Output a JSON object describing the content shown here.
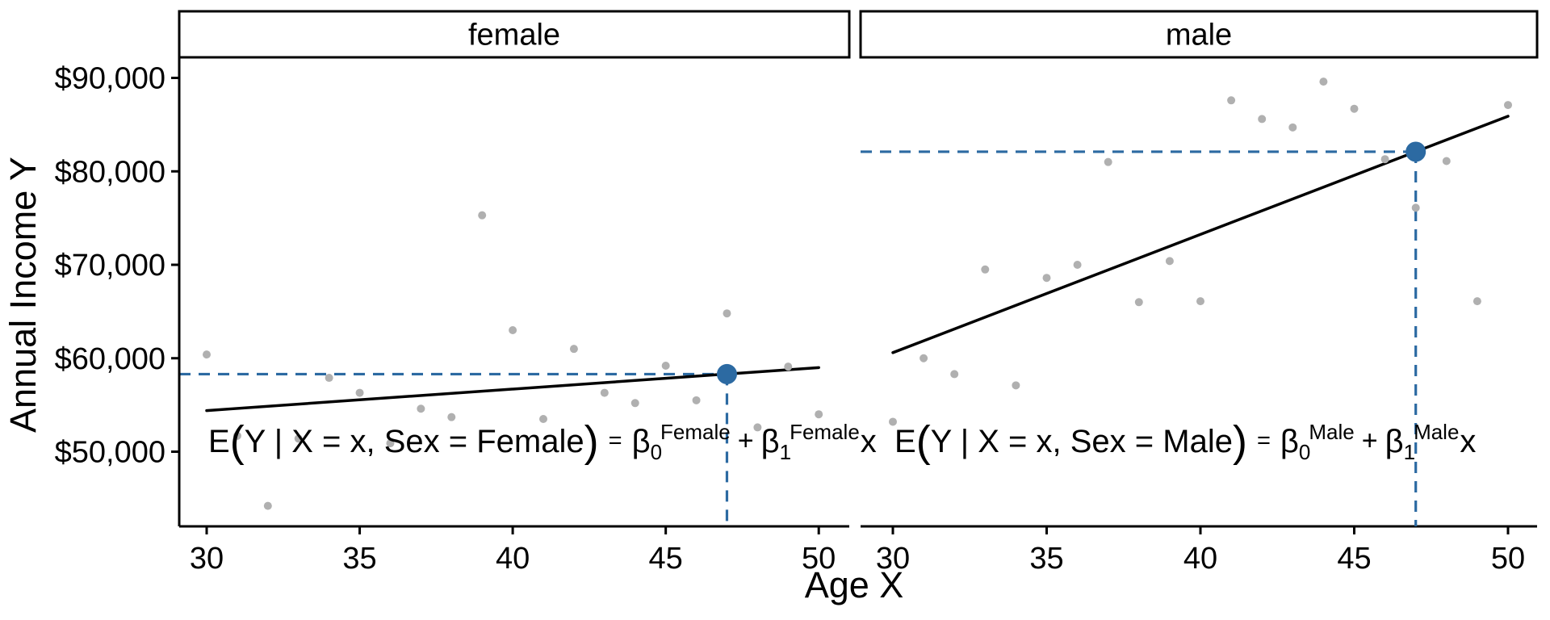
{
  "figure": {
    "background": "#ffffff",
    "accent_blue": "#2c6aa2",
    "point_gray": "#b0b0b0",
    "line_black": "#000000",
    "text_black": "#000000"
  },
  "chart_data": {
    "type": "scatter",
    "title": "",
    "facet_variable": "Sex",
    "xlabel": "Age X",
    "ylabel": "Annual Income Y",
    "x_ticks": [
      30,
      35,
      40,
      45,
      50
    ],
    "y_tick_values": [
      90000,
      80000,
      70000,
      60000,
      50000
    ],
    "y_tick_labels": [
      "$90,000",
      "$80,000",
      "$70,000",
      "$60,000",
      "$50,000"
    ],
    "x_range": [
      29.1,
      51.0
    ],
    "y_range": [
      42000,
      92200
    ],
    "grid": false,
    "legend": "none",
    "facets": [
      {
        "label": "female",
        "points": [
          [
            30,
            60400
          ],
          [
            31,
            51700
          ],
          [
            32,
            44200
          ],
          [
            33,
            51400
          ],
          [
            34,
            57900
          ],
          [
            35,
            56300
          ],
          [
            36,
            50900
          ],
          [
            37,
            54600
          ],
          [
            38,
            53700
          ],
          [
            39,
            75300
          ],
          [
            40,
            63000
          ],
          [
            41,
            53500
          ],
          [
            42,
            61000
          ],
          [
            43,
            56300
          ],
          [
            44,
            55200
          ],
          [
            45,
            59200
          ],
          [
            46,
            55500
          ],
          [
            47,
            64800
          ],
          [
            48,
            52600
          ],
          [
            49,
            59100
          ],
          [
            50,
            54000
          ]
        ],
        "regression_line": {
          "x_start": 30,
          "y_start": 54400,
          "x_end": 50,
          "y_end": 59000
        },
        "highlight_point": {
          "x": 47,
          "y": 58300
        }
      },
      {
        "label": "male",
        "points": [
          [
            30,
            53200
          ],
          [
            31,
            60000
          ],
          [
            32,
            58300
          ],
          [
            33,
            69500
          ],
          [
            34,
            57100
          ],
          [
            35,
            68600
          ],
          [
            36,
            70000
          ],
          [
            37,
            81000
          ],
          [
            38,
            66000
          ],
          [
            39,
            70400
          ],
          [
            40,
            66100
          ],
          [
            41,
            87600
          ],
          [
            42,
            85600
          ],
          [
            43,
            84700
          ],
          [
            44,
            89600
          ],
          [
            45,
            86700
          ],
          [
            46,
            81300
          ],
          [
            47,
            76100
          ],
          [
            48,
            81100
          ],
          [
            49,
            66100
          ],
          [
            50,
            87100
          ]
        ],
        "regression_line": {
          "x_start": 30,
          "y_start": 60600,
          "x_end": 50,
          "y_end": 85900
        },
        "highlight_point": {
          "x": 47,
          "y": 82100
        }
      }
    ]
  },
  "equations": {
    "female": {
      "lhs_E": "E",
      "open_paren": "(",
      "lhs_body": "Y | X = x, Sex = Female",
      "close_paren": ")",
      "equals": "=",
      "beta": "β",
      "beta0_sub": "0",
      "beta0_sup": "Female",
      "plus": "+",
      "beta1_sub": "1",
      "beta1_sup": "Female",
      "x_term": "x"
    },
    "male": {
      "lhs_E": "E",
      "open_paren": "(",
      "lhs_body": "Y | X = x, Sex = Male",
      "close_paren": ")",
      "equals": "=",
      "beta": "β",
      "beta0_sub": "0",
      "beta0_sup": "Male",
      "plus": "+",
      "beta1_sub": "1",
      "beta1_sup": "Male",
      "x_term": "x"
    }
  }
}
